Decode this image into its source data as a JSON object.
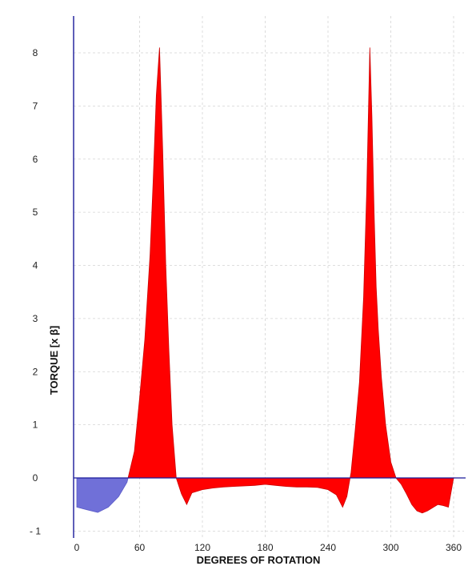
{
  "chart_data": {
    "type": "area",
    "title": "",
    "xlabel": "DEGREES OF ROTATION",
    "ylabel": "TORQUE [x β]",
    "xlim": [
      0,
      360
    ],
    "ylim": [
      -1,
      8
    ],
    "x_ticks": [
      0,
      60,
      120,
      180,
      240,
      300,
      360
    ],
    "y_ticks": [
      {
        "value": 8,
        "label": "8"
      },
      {
        "value": 7,
        "label": "7"
      },
      {
        "value": 6,
        "label": "6"
      },
      {
        "value": 5,
        "label": "5"
      },
      {
        "value": 4,
        "label": "4"
      },
      {
        "value": 3,
        "label": "3"
      },
      {
        "value": 2,
        "label": "2"
      },
      {
        "value": 1,
        "label": "1"
      },
      {
        "value": 0,
        "label": "0"
      },
      {
        "value": -1,
        "label": "- 1"
      }
    ],
    "grid": true,
    "colors": {
      "positive": "#ff0000",
      "negative": "#7070d8",
      "axis": "#1a1a9a"
    },
    "series": [
      {
        "x": [
          0,
          10,
          20,
          30,
          40,
          48,
          55,
          60,
          65,
          70,
          73,
          76,
          79,
          82,
          85,
          88,
          91,
          95,
          100,
          105,
          110,
          120,
          130,
          140,
          150,
          160,
          170,
          180,
          190,
          200,
          210,
          220,
          230,
          240,
          248,
          254,
          258,
          262,
          266,
          270,
          274,
          277,
          280,
          282,
          284,
          286,
          288,
          291,
          295,
          300,
          305,
          310,
          315,
          320,
          325,
          330,
          335,
          340,
          345,
          350,
          355,
          360
        ],
        "y": [
          -0.55,
          -0.6,
          -0.65,
          -0.55,
          -0.35,
          -0.08,
          0.5,
          1.5,
          2.6,
          4.2,
          5.6,
          7.2,
          8.1,
          6.2,
          4.0,
          2.4,
          1.0,
          0.0,
          -0.3,
          -0.5,
          -0.28,
          -0.22,
          -0.19,
          -0.17,
          -0.16,
          -0.15,
          -0.14,
          -0.12,
          -0.14,
          -0.16,
          -0.17,
          -0.17,
          -0.18,
          -0.22,
          -0.32,
          -0.55,
          -0.35,
          0.1,
          0.9,
          1.8,
          3.4,
          5.4,
          8.1,
          6.8,
          5.0,
          3.6,
          2.8,
          1.9,
          1.0,
          0.3,
          0.0,
          -0.12,
          -0.3,
          -0.5,
          -0.62,
          -0.66,
          -0.62,
          -0.56,
          -0.5,
          -0.52,
          -0.55,
          0.0
        ]
      }
    ]
  }
}
